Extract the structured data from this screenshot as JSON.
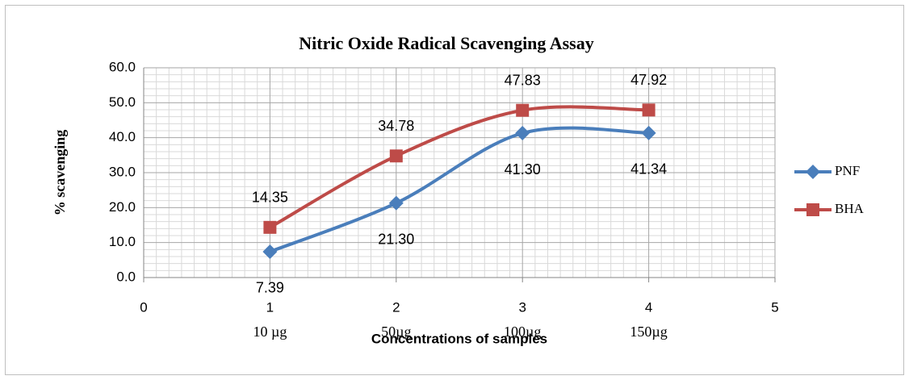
{
  "chart_data": {
    "type": "line",
    "title": "Nitric Oxide Radical  Scavenging Assay",
    "xlabel": "Concentrations of samples",
    "ylabel": "% scavenging",
    "x": [
      1,
      2,
      3,
      4
    ],
    "concentration_labels": [
      "10 µg",
      "50µg",
      "100µg",
      "150µg"
    ],
    "series": [
      {
        "name": "PNF",
        "color": "#4a7ebb",
        "marker": "diamond",
        "values": [
          7.39,
          21.3,
          41.3,
          41.34
        ],
        "value_labels": [
          "7.39",
          "21.30",
          "41.30",
          "41.34"
        ]
      },
      {
        "name": "BHA",
        "color": "#be4b48",
        "marker": "square",
        "values": [
          14.35,
          34.78,
          47.83,
          47.92
        ],
        "value_labels": [
          "14.35",
          "34.78",
          "47.83",
          "47.92"
        ]
      }
    ],
    "xlim": [
      0,
      5
    ],
    "xticks": [
      0,
      1,
      2,
      3,
      4,
      5
    ],
    "ylim": [
      0,
      60
    ],
    "yticks": [
      {
        "value": 0,
        "label": "0.0"
      },
      {
        "value": 10,
        "label": "10.0"
      },
      {
        "value": 20,
        "label": "20.0"
      },
      {
        "value": 30,
        "label": "30.0"
      },
      {
        "value": 40,
        "label": "40.0"
      },
      {
        "value": 50,
        "label": "50.0"
      },
      {
        "value": 60,
        "label": "60.0"
      }
    ],
    "grid": true,
    "smooth": true,
    "legend": "right"
  }
}
